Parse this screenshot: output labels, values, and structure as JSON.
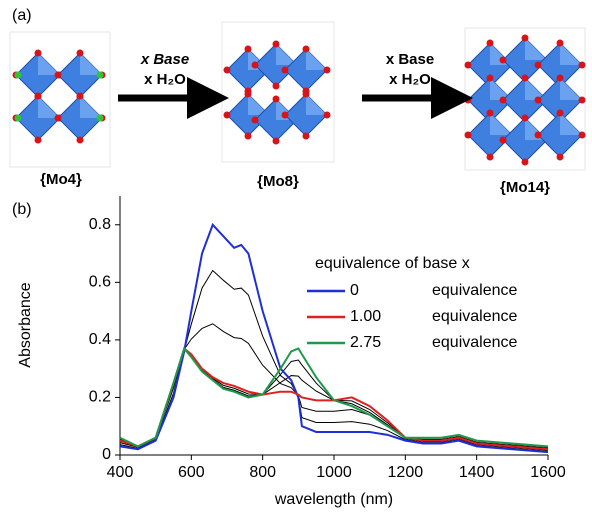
{
  "scheme": {
    "panel_label": "(a)",
    "step1_top": "x Base",
    "step1_bottom": "x H₂O",
    "step2_top": "x Base",
    "step2_bottom": "x H₂O",
    "compounds": [
      "{Mo4}",
      "{Mo8}",
      "{Mo14}"
    ],
    "compound_colors": [
      "#1f1fd6",
      "#e0201f",
      "#1aa55a"
    ]
  },
  "chart_data": {
    "type": "line",
    "panel_label": "(b)",
    "x_label": "wavelength (nm)",
    "y_label": "Absorbance",
    "legend_title": "equivalence of base x",
    "legend_suffix": "equivalence",
    "x": [
      400,
      450,
      500,
      550,
      580,
      600,
      630,
      660,
      690,
      720,
      740,
      760,
      800,
      850,
      880,
      900,
      910,
      950,
      1000,
      1050,
      1100,
      1150,
      1200,
      1250,
      1300,
      1350,
      1400,
      1500,
      1600
    ],
    "series": [
      {
        "name": "0",
        "color": "#1f2fd8",
        "values": [
          0.03,
          0.02,
          0.05,
          0.2,
          0.36,
          0.5,
          0.7,
          0.8,
          0.76,
          0.72,
          0.73,
          0.7,
          0.5,
          0.3,
          0.26,
          0.2,
          0.1,
          0.08,
          0.08,
          0.08,
          0.08,
          0.07,
          0.05,
          0.04,
          0.04,
          0.05,
          0.03,
          0.02,
          0.01
        ]
      },
      {
        "color": "#000000",
        "values": [
          0.036,
          0.023,
          0.053,
          0.215,
          0.363,
          0.455,
          0.58,
          0.641,
          0.607,
          0.576,
          0.58,
          0.556,
          0.413,
          0.276,
          0.248,
          0.203,
          0.13,
          0.113,
          0.113,
          0.116,
          0.107,
          0.085,
          0.053,
          0.043,
          0.043,
          0.053,
          0.033,
          0.023,
          0.013
        ]
      },
      {
        "color": "#000000",
        "values": [
          0.043,
          0.027,
          0.057,
          0.233,
          0.367,
          0.403,
          0.44,
          0.456,
          0.429,
          0.408,
          0.405,
          0.388,
          0.312,
          0.248,
          0.234,
          0.207,
          0.165,
          0.152,
          0.152,
          0.158,
          0.139,
          0.103,
          0.057,
          0.047,
          0.047,
          0.057,
          0.037,
          0.027,
          0.017
        ]
      },
      {
        "name": "1.00",
        "color": "#e02020",
        "values": [
          0.05,
          0.03,
          0.06,
          0.25,
          0.37,
          0.35,
          0.3,
          0.27,
          0.25,
          0.24,
          0.23,
          0.22,
          0.21,
          0.22,
          0.22,
          0.21,
          0.2,
          0.19,
          0.19,
          0.2,
          0.17,
          0.12,
          0.06,
          0.05,
          0.05,
          0.06,
          0.04,
          0.03,
          0.02
        ]
      },
      {
        "color": "#000000",
        "values": [
          0.054,
          0.03,
          0.06,
          0.25,
          0.37,
          0.346,
          0.296,
          0.266,
          0.242,
          0.232,
          0.222,
          0.212,
          0.21,
          0.252,
          0.276,
          0.274,
          0.26,
          0.222,
          0.19,
          0.188,
          0.158,
          0.112,
          0.06,
          0.054,
          0.054,
          0.064,
          0.044,
          0.034,
          0.024
        ]
      },
      {
        "color": "#000000",
        "values": [
          0.058,
          0.03,
          0.06,
          0.25,
          0.37,
          0.343,
          0.293,
          0.263,
          0.235,
          0.225,
          0.215,
          0.205,
          0.21,
          0.28,
          0.325,
          0.33,
          0.313,
          0.25,
          0.19,
          0.178,
          0.148,
          0.105,
          0.06,
          0.058,
          0.058,
          0.068,
          0.048,
          0.038,
          0.028
        ]
      },
      {
        "name": "2.75",
        "color": "#1f9a4a",
        "values": [
          0.06,
          0.03,
          0.06,
          0.25,
          0.37,
          0.34,
          0.29,
          0.26,
          0.23,
          0.22,
          0.21,
          0.2,
          0.21,
          0.3,
          0.36,
          0.37,
          0.35,
          0.27,
          0.19,
          0.17,
          0.14,
          0.1,
          0.06,
          0.06,
          0.06,
          0.07,
          0.05,
          0.04,
          0.03
        ]
      }
    ],
    "xlim": [
      400,
      1600
    ],
    "xticks": [
      400,
      600,
      800,
      1000,
      1200,
      1400,
      1600
    ],
    "ylim": [
      0,
      0.9
    ],
    "yticks": [
      0,
      0.2,
      0.4,
      0.6,
      0.8
    ]
  }
}
